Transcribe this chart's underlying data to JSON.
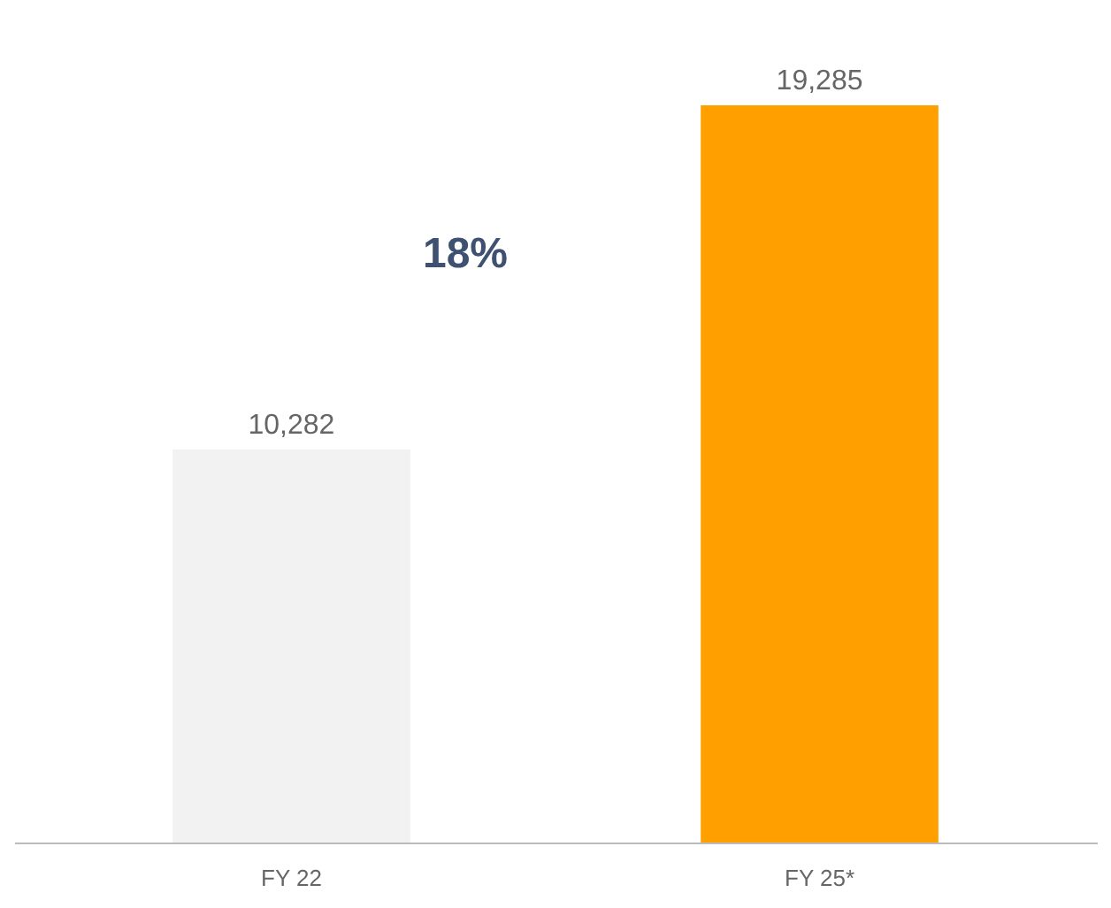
{
  "chart_data": {
    "type": "bar",
    "categories": [
      "FY 22",
      "FY 25*"
    ],
    "values": [
      10282,
      19285
    ],
    "colors": [
      "#f2f2f2",
      "#ff9f00"
    ],
    "value_labels": [
      "10,282",
      "19,285"
    ],
    "annotations": [
      "18%"
    ],
    "grid": false
  }
}
